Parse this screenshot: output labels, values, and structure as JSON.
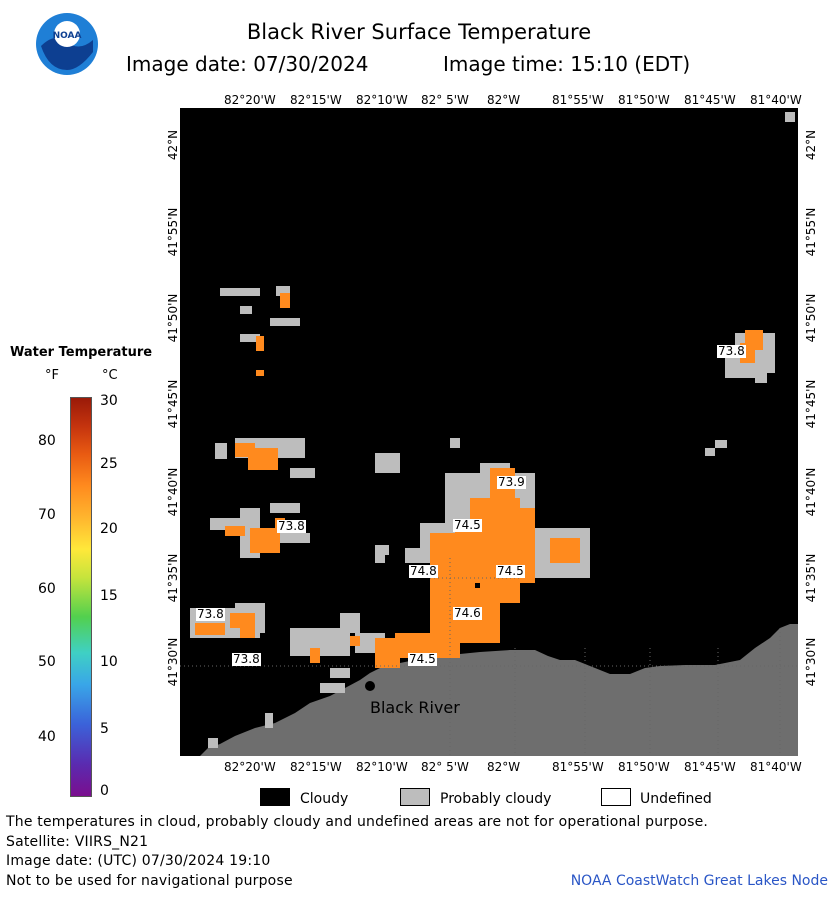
{
  "header": {
    "title": "Black River Surface Temperature",
    "image_date": "Image date: 07/30/2024",
    "image_time": "Image time: 15:10 (EDT)"
  },
  "logo": {
    "text": "NOAA",
    "icon": "noaa-logo-icon"
  },
  "map": {
    "top_lon_labels": [
      "82°20'W",
      "82°15'W",
      "82°10'W",
      "82° 5'W",
      "82°W",
      "81°55'W",
      "81°50'W",
      "81°45'W",
      "81°40'W"
    ],
    "bottom_lon_labels": [
      "82°20'W",
      "82°15'W",
      "82°10'W",
      "82° 5'W",
      "82°W",
      "81°55'W",
      "81°50'W",
      "81°45'W",
      "81°40'W"
    ],
    "left_lat_labels": [
      "42°N",
      "41°55'N",
      "41°50'N",
      "41°45'N",
      "41°40'N",
      "41°35'N",
      "41°30'N"
    ],
    "right_lat_labels": [
      "42°N",
      "41°55'N",
      "41°50'N",
      "41°45'N",
      "41°40'N",
      "41°35'N",
      "41°30'N"
    ],
    "place_label": "Black River",
    "temperature_labels": [
      "73.8",
      "73.9",
      "74.5",
      "73.8",
      "74.8",
      "74.5",
      "73.8",
      "74.6",
      "73.8",
      "74.5"
    ],
    "colors": {
      "water": "#000000",
      "land": "#6e6e6e",
      "probably_cloudy": "#bdbdbd",
      "sst_warm": "#ff8a1e"
    }
  },
  "legend": {
    "title": "Water Temperature",
    "unit_f": "°F",
    "unit_c": "°C",
    "f_ticks": [
      "80",
      "70",
      "60",
      "50",
      "40"
    ],
    "c_ticks": [
      "30",
      "25",
      "20",
      "15",
      "10",
      "5",
      "0"
    ],
    "cloud_legend": [
      "Cloudy",
      "Probably cloudy",
      "Undefined"
    ]
  },
  "footer": {
    "note": "The temperatures in cloud, probably cloudy and undefined areas are not for operational purpose.",
    "satellite": "Satellite: VIIRS_N21",
    "utc_date": "Image date: (UTC) 07/30/2024  19:10",
    "nav_warning": "Not to be used for navigational purpose",
    "credit": "NOAA CoastWatch Great Lakes Node"
  }
}
